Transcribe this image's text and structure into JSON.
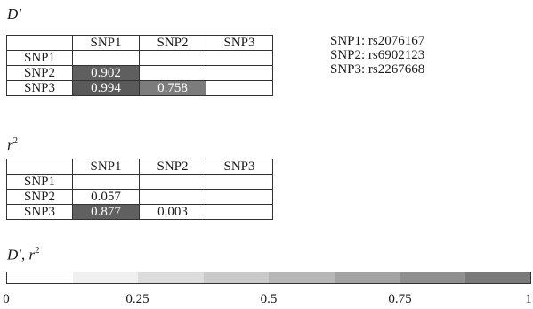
{
  "dprime_table": {
    "label_main": "D",
    "label_prime": "′",
    "col_headers": [
      "SNP1",
      "SNP2",
      "SNP3"
    ],
    "rows": [
      {
        "name": "SNP1",
        "cells": [
          "",
          "",
          ""
        ],
        "colors": [
          "#ffffff",
          "#ffffff",
          "#ffffff"
        ]
      },
      {
        "name": "SNP2",
        "cells": [
          "0.902",
          "",
          ""
        ],
        "colors": [
          "#5f5f5f",
          "#ffffff",
          "#ffffff"
        ]
      },
      {
        "name": "SNP3",
        "cells": [
          "0.994",
          "0.758",
          ""
        ],
        "colors": [
          "#5a5a5a",
          "#7c7c7c",
          "#ffffff"
        ]
      }
    ]
  },
  "r2_table": {
    "label_main": "r",
    "label_sup": "2",
    "col_headers": [
      "SNP1",
      "SNP2",
      "SNP3"
    ],
    "rows": [
      {
        "name": "SNP1",
        "cells": [
          "",
          "",
          ""
        ],
        "colors": [
          "#ffffff",
          "#ffffff",
          "#ffffff"
        ]
      },
      {
        "name": "SNP2",
        "cells": [
          "0.057",
          "",
          ""
        ],
        "colors": [
          "#ffffff",
          "#ffffff",
          "#ffffff"
        ]
      },
      {
        "name": "SNP3",
        "cells": [
          "0.877",
          "0.003",
          ""
        ],
        "colors": [
          "#606060",
          "#ffffff",
          "#ffffff"
        ]
      }
    ]
  },
  "snp_key": [
    "SNP1: rs2076167",
    "SNP2: rs6902123",
    "SNP3: rs2267668"
  ],
  "scale": {
    "label_main": "D",
    "label_prime": "′",
    "label_sep": ", ",
    "label_r": "r",
    "label_sup": "2",
    "segment_colors": [
      "#ffffff",
      "#f0f0f0",
      "#dcdcdc",
      "#c9c9c9",
      "#b6b6b6",
      "#a3a3a3",
      "#8f8f8f",
      "#7a7a7a"
    ],
    "ticks": [
      "0",
      "0.25",
      "0.5",
      "0.75",
      "1"
    ],
    "tick_fractions": [
      0,
      0.25,
      0.5,
      0.75,
      1
    ]
  }
}
